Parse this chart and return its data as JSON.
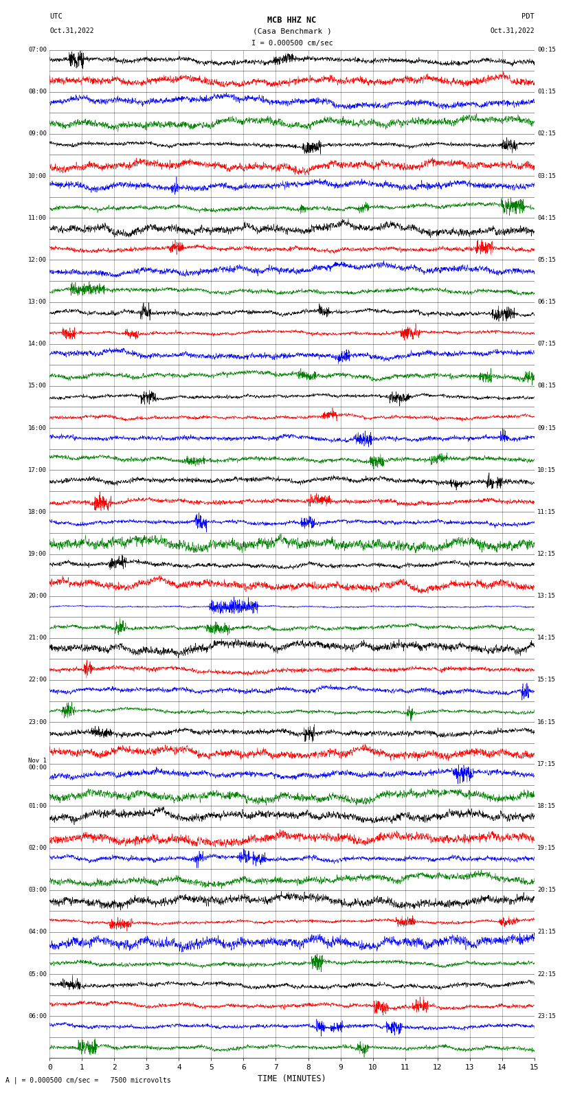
{
  "title_line1": "MCB HHZ NC",
  "title_line2": "(Casa Benchmark )",
  "scale_text": "I = 0.000500 cm/sec",
  "bottom_scale_text": "= 0.000500 cm/sec =   7500 microvolts",
  "utc_label": "UTC",
  "pdt_label": "PDT",
  "date_left": "Oct.31,2022",
  "date_right": "Oct.31,2022",
  "xlabel": "TIME (MINUTES)",
  "xmin": 0,
  "xmax": 15,
  "xticks": [
    0,
    1,
    2,
    3,
    4,
    5,
    6,
    7,
    8,
    9,
    10,
    11,
    12,
    13,
    14,
    15
  ],
  "num_rows": 48,
  "colors": [
    "black",
    "red",
    "blue",
    "green"
  ],
  "background_color": "white",
  "fig_width": 8.5,
  "fig_height": 16.13,
  "dpi": 100,
  "left_times_utc": [
    "07:00",
    "",
    "08:00",
    "",
    "09:00",
    "",
    "10:00",
    "",
    "11:00",
    "",
    "12:00",
    "",
    "13:00",
    "",
    "14:00",
    "",
    "15:00",
    "",
    "16:00",
    "",
    "17:00",
    "",
    "18:00",
    "",
    "19:00",
    "",
    "20:00",
    "",
    "21:00",
    "",
    "22:00",
    "",
    "23:00",
    "",
    "Nov 1\n00:00",
    "",
    "01:00",
    "",
    "02:00",
    "",
    "03:00",
    "",
    "04:00",
    "",
    "05:00",
    "",
    "06:00",
    ""
  ],
  "right_times_pdt": [
    "00:15",
    "",
    "01:15",
    "",
    "02:15",
    "",
    "03:15",
    "",
    "04:15",
    "",
    "05:15",
    "",
    "06:15",
    "",
    "07:15",
    "",
    "08:15",
    "",
    "09:15",
    "",
    "10:15",
    "",
    "11:15",
    "",
    "12:15",
    "",
    "13:15",
    "",
    "14:15",
    "",
    "15:15",
    "",
    "16:15",
    "",
    "17:15",
    "",
    "18:15",
    "",
    "19:15",
    "",
    "20:15",
    "",
    "21:15",
    "",
    "22:15",
    "",
    "23:15",
    ""
  ]
}
